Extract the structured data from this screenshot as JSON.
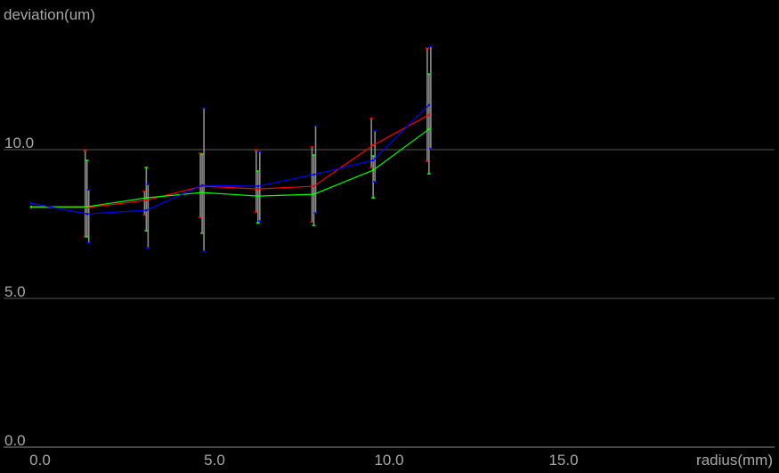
{
  "chart_data": {
    "type": "line",
    "ylabel": "deviation(um)",
    "xlabel": "radius(mm)",
    "xlim": [
      0,
      21
    ],
    "ylim": [
      0,
      15
    ],
    "x_ticks": [
      "0.0",
      "5.0",
      "10.0",
      "15.0"
    ],
    "y_ticks": [
      "0.0",
      "5.0",
      "10.0"
    ],
    "grid": "horizontal",
    "x": [
      0,
      1.6,
      3.3,
      4.9,
      6.5,
      8.1,
      9.8,
      11.4
    ],
    "series": [
      {
        "color": "#ff0000",
        "values": [
          8.05,
          8.05,
          8.3,
          8.77,
          8.68,
          8.77,
          10.15,
          11.17
        ],
        "err_low": [
          null,
          7.07,
          7.8,
          7.72,
          7.9,
          7.57,
          9.4,
          9.61
        ],
        "err_high": [
          null,
          9.97,
          8.6,
          9.88,
          9.97,
          10.09,
          11.05,
          13.41
        ]
      },
      {
        "color": "#00ff00",
        "values": [
          8.08,
          8.08,
          8.38,
          8.56,
          8.44,
          8.5,
          9.31,
          10.69
        ],
        "err_low": [
          null,
          7.07,
          7.27,
          7.19,
          7.54,
          7.45,
          8.38,
          9.19
        ],
        "err_high": [
          null,
          9.64,
          9.4,
          9.85,
          9.28,
          9.82,
          9.79,
          12.54
        ]
      },
      {
        "color": "#0000ff",
        "values": [
          8.2,
          7.84,
          7.96,
          8.8,
          8.77,
          9.16,
          9.64,
          11.5
        ],
        "err_low": [
          null,
          6.86,
          6.7,
          6.59,
          7.6,
          7.87,
          8.92,
          10.03
        ],
        "err_high": [
          null,
          8.65,
          8.83,
          11.4,
          9.94,
          10.8,
          10.63,
          13.47
        ]
      }
    ],
    "error_bar_color": "#8c8c8c",
    "grid_color": "#5a5a5a",
    "background": "#000000"
  }
}
